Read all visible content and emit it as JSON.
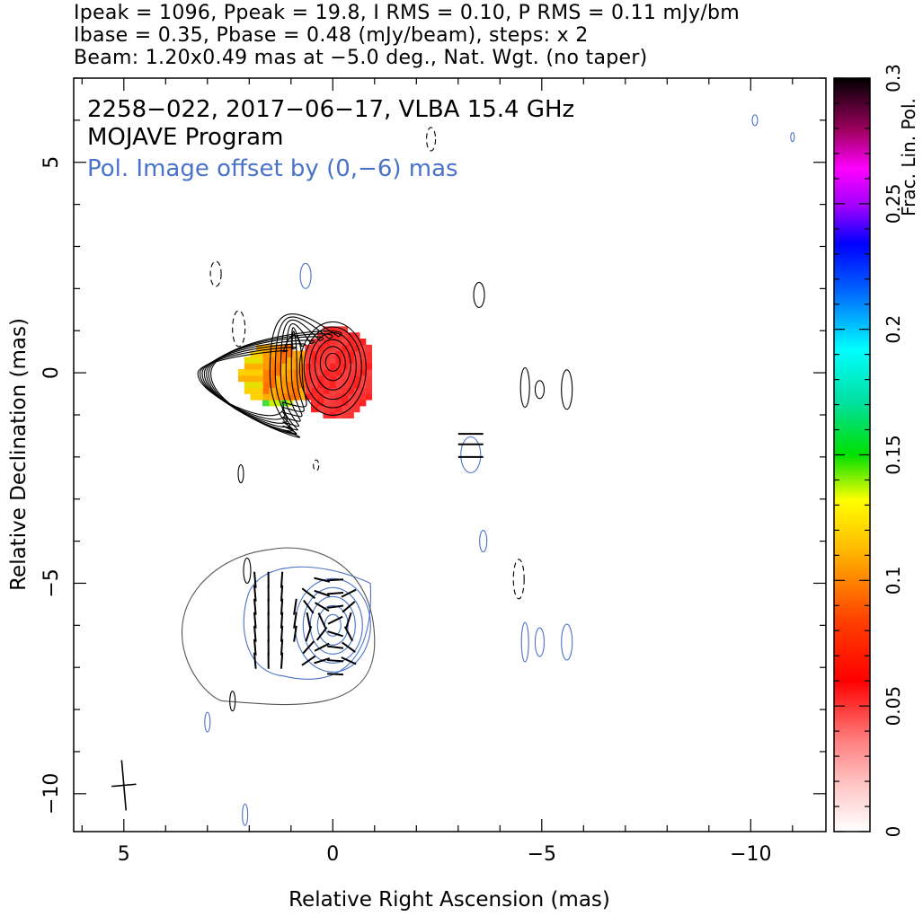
{
  "header": {
    "line1": "Ipeak = 1096, Ppeak = 19.8, I RMS = 0.10, P RMS = 0.11 mJy/bm",
    "line2": "Ibase = 0.35, Pbase = 0.48 (mJy/beam), steps: x 2",
    "line3": "Beam: 1.20x0.49 mas at −5.0 deg., Nat. Wgt. (no taper)"
  },
  "chart_data": {
    "type": "heatmap",
    "annotations": {
      "source": "2258−022, 2017−06−17, VLBA 15.4 GHz",
      "program": "MOJAVE Program",
      "offset_note": "Pol. Image offset by (0,−6) mas"
    },
    "xlabel": "Relative Right Ascension (mas)",
    "ylabel": "Relative Declination (mas)",
    "xlim": [
      6.2,
      -11.8
    ],
    "ylim": [
      -10.9,
      7.0
    ],
    "x_ticks": [
      5,
      0,
      -5,
      -10
    ],
    "x_tick_labels": [
      "5",
      "0",
      "−5",
      "−10"
    ],
    "y_ticks": [
      5,
      0,
      -5,
      -10
    ],
    "y_tick_labels": [
      "5",
      "0",
      "−5",
      "−10"
    ],
    "colorbar": {
      "label": "Frac. Lin. Pol.",
      "range": [
        0,
        0.3
      ],
      "ticks": [
        0,
        0.05,
        0.1,
        0.15,
        0.2,
        0.25,
        0.3
      ],
      "tick_labels": [
        "0",
        "0.05",
        "0.1",
        "0.15",
        "0.2",
        "0.25",
        "0.3"
      ]
    },
    "total_intensity_peak": {
      "x": 0.0,
      "y": 0.0
    },
    "polarized_image_offset": [
      0,
      -6
    ],
    "beam": {
      "major": 1.2,
      "minor": 0.49,
      "pa": -5.0,
      "center": [
        5.0,
        -9.8
      ]
    },
    "colors": {
      "stokes_i_contours": "#000000",
      "pol_contours": "#4a72c8",
      "ipol_contours_lower": "#555555",
      "evpa_ticks": "#000000"
    }
  }
}
